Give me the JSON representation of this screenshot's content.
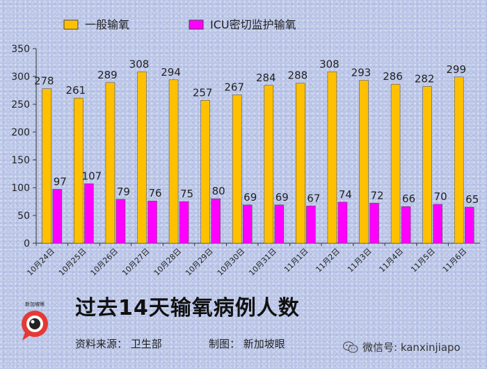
{
  "legend": {
    "series1": "一般输氧",
    "series2": "ICU密切监护输氧"
  },
  "footer": {
    "title": "过去14天输氧病例人数",
    "source": "资料来源： 卫生部",
    "credit": "制图： 新加坡眼",
    "wechat_label": "微信号: kanxinjiapo",
    "logo_text": "新加坡眼"
  },
  "colors": {
    "series1": "#FFC000",
    "series2": "#FF00FF"
  },
  "chart_data": {
    "type": "bar",
    "categories": [
      "10月24日",
      "10月25日",
      "10月26日",
      "10月27日",
      "10月28日",
      "10月29日",
      "10月30日",
      "10月31日",
      "11月1日",
      "11月2日",
      "11月3日",
      "11月4日",
      "11月5日",
      "11月6日"
    ],
    "series": [
      {
        "name": "一般输氧",
        "values": [
          278,
          261,
          289,
          308,
          294,
          257,
          267,
          284,
          288,
          308,
          293,
          286,
          282,
          299
        ]
      },
      {
        "name": "ICU密切监护输氧",
        "values": [
          97,
          107,
          79,
          76,
          75,
          80,
          69,
          69,
          67,
          74,
          72,
          66,
          70,
          65
        ]
      }
    ],
    "ylim": [
      0,
      350
    ],
    "yticks": [
      0,
      50,
      100,
      150,
      200,
      250,
      300,
      350
    ],
    "grid": false,
    "legend_position": "top"
  }
}
